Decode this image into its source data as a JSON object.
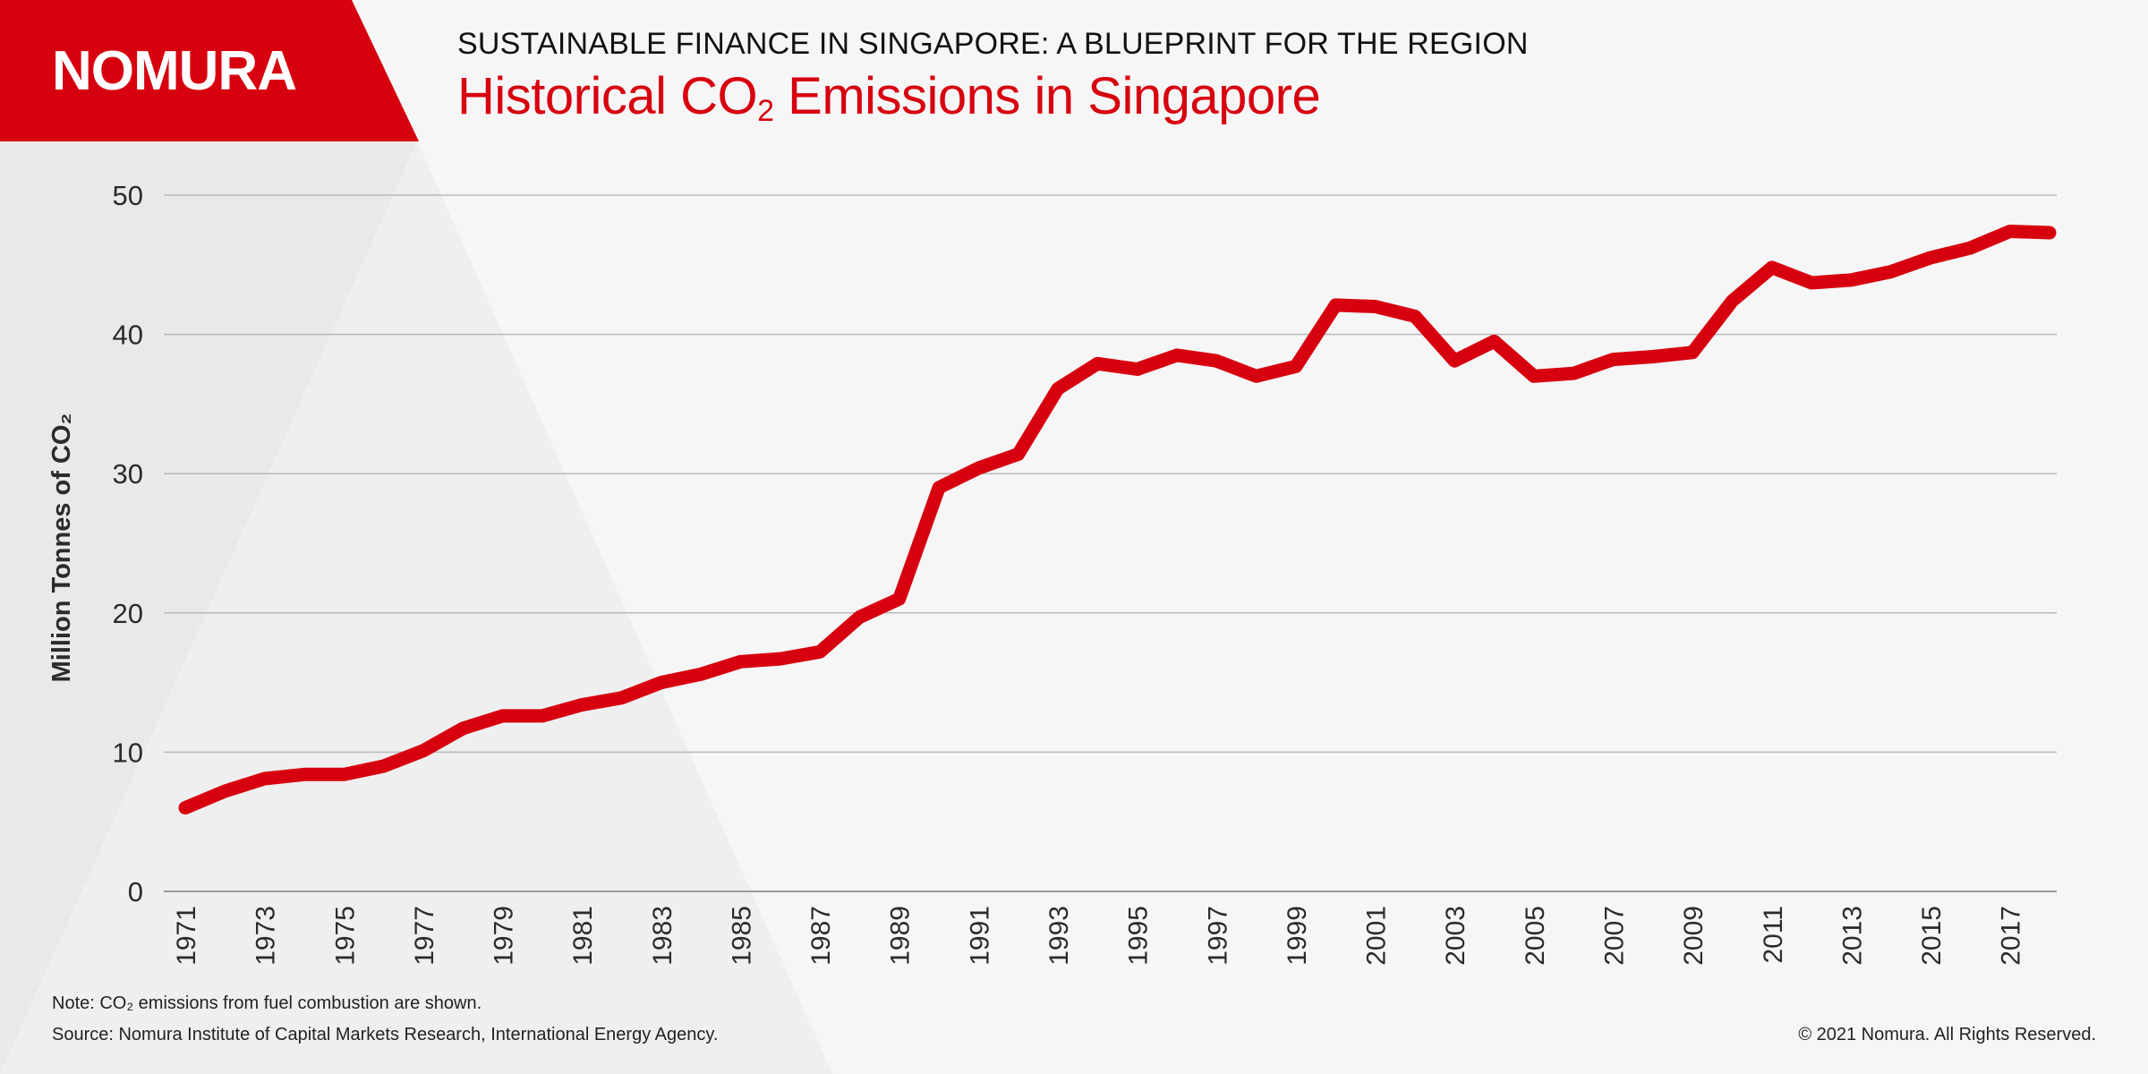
{
  "header": {
    "brand": "NOMURA",
    "supertitle": "SUSTAINABLE FINANCE IN SINGAPORE: A BLUEPRINT FOR THE REGION",
    "title_main": "Historical CO",
    "title_sub": "2",
    "title_rest": " Emissions in Singapore"
  },
  "footer": {
    "note": "Note: CO₂ emissions from fuel combustion are shown.",
    "source": "Source: Nomura Institute of Capital Markets Research, International Energy Agency.",
    "copyright": "© 2021 Nomura. All Rights Reserved."
  },
  "colors": {
    "brand_red": "#d7000f",
    "grid": "#b9b9b9",
    "axis_text": "#2b2b2b"
  },
  "chart_data": {
    "type": "line",
    "title": "Historical CO₂ Emissions in Singapore",
    "ylabel": "Million Tonnes of CO₂",
    "xlabel": "",
    "ylim": [
      0,
      50
    ],
    "yticks": [
      0,
      10,
      20,
      30,
      40,
      50
    ],
    "xlim": [
      1971,
      2018
    ],
    "xticks": [
      1971,
      1973,
      1975,
      1977,
      1979,
      1981,
      1983,
      1985,
      1987,
      1989,
      1991,
      1993,
      1995,
      1997,
      1999,
      2001,
      2003,
      2005,
      2007,
      2009,
      2011,
      2013,
      2015,
      2017
    ],
    "grid": "horizontal",
    "series": [
      {
        "name": "",
        "color": "#d7000f",
        "x": [
          1971,
          1972,
          1973,
          1974,
          1975,
          1976,
          1977,
          1978,
          1979,
          1980,
          1981,
          1982,
          1983,
          1984,
          1985,
          1986,
          1987,
          1988,
          1989,
          1990,
          1991,
          1992,
          1993,
          1994,
          1995,
          1996,
          1997,
          1998,
          1999,
          2000,
          2001,
          2002,
          2003,
          2004,
          2005,
          2006,
          2007,
          2008,
          2009,
          2010,
          2011,
          2012,
          2013,
          2014,
          2015,
          2016,
          2017,
          2018
        ],
        "values": [
          6.0,
          7.2,
          8.1,
          8.4,
          8.4,
          9.0,
          10.1,
          11.7,
          12.6,
          12.6,
          13.4,
          13.9,
          15.0,
          15.6,
          16.5,
          16.7,
          17.2,
          19.7,
          21.0,
          29.0,
          30.4,
          31.4,
          36.1,
          37.9,
          37.5,
          38.5,
          38.1,
          37.0,
          37.7,
          42.1,
          42.0,
          41.3,
          38.1,
          39.5,
          37.0,
          37.2,
          38.2,
          38.4,
          38.7,
          42.4,
          44.8,
          43.7,
          43.9,
          44.5,
          45.5,
          46.2,
          47.4,
          47.3
        ]
      }
    ]
  }
}
